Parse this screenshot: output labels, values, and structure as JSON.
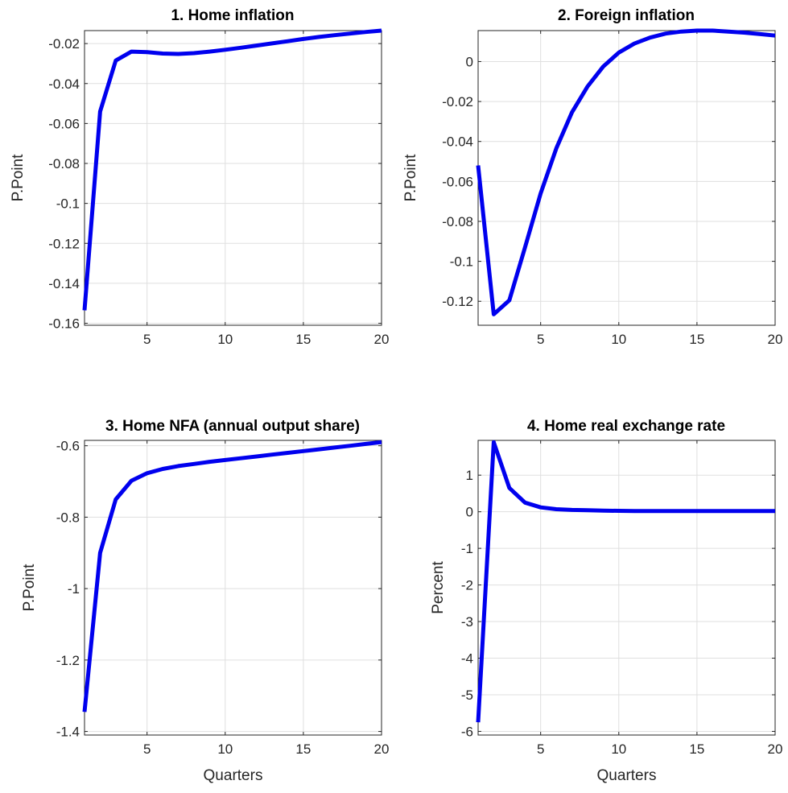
{
  "colors": {
    "series": "#0000ee"
  },
  "chart_data": [
    {
      "type": "line",
      "title": "1. Home inflation",
      "xlabel": "",
      "ylabel": "P.Point",
      "xlim": [
        1,
        20
      ],
      "ylim": [
        -0.161,
        -0.0135
      ],
      "xticks": [
        5,
        10,
        15,
        20
      ],
      "xtick_labels": [
        "5",
        "10",
        "15",
        "20"
      ],
      "yticks": [
        -0.16,
        -0.14,
        -0.12,
        -0.1,
        -0.08,
        -0.06,
        -0.04,
        -0.02
      ],
      "ytick_labels": [
        "-0.16",
        "-0.14",
        "-0.12",
        "-0.1",
        "-0.08",
        "-0.06",
        "-0.04",
        "-0.02"
      ],
      "grid": true,
      "x": [
        1,
        2,
        3,
        4,
        5,
        6,
        7,
        8,
        9,
        10,
        11,
        12,
        13,
        14,
        15,
        16,
        17,
        18,
        19,
        20
      ],
      "values": [
        -0.1535,
        -0.054,
        -0.0285,
        -0.024,
        -0.0243,
        -0.025,
        -0.0252,
        -0.0248,
        -0.024,
        -0.0231,
        -0.0221,
        -0.021,
        -0.0199,
        -0.0188,
        -0.0177,
        -0.0167,
        -0.0158,
        -0.015,
        -0.0142,
        -0.0135
      ]
    },
    {
      "type": "line",
      "title": "2. Foreign inflation",
      "xlabel": "",
      "ylabel": "P.Point",
      "xlim": [
        1,
        20
      ],
      "ylim": [
        -0.132,
        0.0155
      ],
      "xticks": [
        5,
        10,
        15,
        20
      ],
      "xtick_labels": [
        "5",
        "10",
        "15",
        "20"
      ],
      "yticks": [
        -0.12,
        -0.1,
        -0.08,
        -0.06,
        -0.04,
        -0.02,
        0
      ],
      "ytick_labels": [
        "-0.12",
        "-0.1",
        "-0.08",
        "-0.06",
        "-0.04",
        "-0.02",
        "0"
      ],
      "grid": true,
      "x": [
        1,
        2,
        3,
        4,
        5,
        6,
        7,
        8,
        9,
        10,
        11,
        12,
        13,
        14,
        15,
        16,
        17,
        18,
        19,
        20
      ],
      "values": [
        -0.052,
        -0.1265,
        -0.1195,
        -0.093,
        -0.066,
        -0.0435,
        -0.0255,
        -0.0125,
        -0.0025,
        0.0045,
        0.009,
        0.012,
        0.014,
        0.015,
        0.0155,
        0.0155,
        0.015,
        0.0145,
        0.0138,
        0.013
      ]
    },
    {
      "type": "line",
      "title": "3. Home NFA (annual output share)",
      "xlabel": "Quarters",
      "ylabel": "P.Point",
      "xlim": [
        1,
        20
      ],
      "ylim": [
        -1.41,
        -0.585
      ],
      "xticks": [
        5,
        10,
        15,
        20
      ],
      "xtick_labels": [
        "5",
        "10",
        "15",
        "20"
      ],
      "yticks": [
        -1.4,
        -1.2,
        -1,
        -0.8,
        -0.6
      ],
      "ytick_labels": [
        "-1.4",
        "-1.2",
        "-1",
        "-0.8",
        "-0.6"
      ],
      "grid": true,
      "x": [
        1,
        2,
        3,
        4,
        5,
        6,
        7,
        8,
        9,
        10,
        11,
        12,
        13,
        14,
        15,
        16,
        17,
        18,
        19,
        20
      ],
      "values": [
        -1.345,
        -0.9,
        -0.75,
        -0.698,
        -0.677,
        -0.665,
        -0.657,
        -0.651,
        -0.645,
        -0.64,
        -0.635,
        -0.63,
        -0.625,
        -0.62,
        -0.615,
        -0.61,
        -0.605,
        -0.6,
        -0.595,
        -0.59
      ]
    },
    {
      "type": "line",
      "title": "4. Home real exchange rate",
      "xlabel": "Quarters",
      "ylabel": "Percent",
      "xlim": [
        1,
        20
      ],
      "ylim": [
        -6.1,
        1.95
      ],
      "xticks": [
        5,
        10,
        15,
        20
      ],
      "xtick_labels": [
        "5",
        "10",
        "15",
        "20"
      ],
      "yticks": [
        -6,
        -5,
        -4,
        -3,
        -2,
        -1,
        0,
        1
      ],
      "ytick_labels": [
        "-6",
        "-5",
        "-4",
        "-3",
        "-2",
        "-1",
        "0",
        "1"
      ],
      "grid": true,
      "x": [
        1,
        2,
        3,
        4,
        5,
        6,
        7,
        8,
        9,
        10,
        11,
        12,
        13,
        14,
        15,
        16,
        17,
        18,
        19,
        20
      ],
      "values": [
        -5.75,
        1.9,
        0.65,
        0.25,
        0.12,
        0.07,
        0.05,
        0.04,
        0.03,
        0.025,
        0.02,
        0.02,
        0.02,
        0.02,
        0.02,
        0.02,
        0.02,
        0.02,
        0.02,
        0.02
      ]
    }
  ]
}
